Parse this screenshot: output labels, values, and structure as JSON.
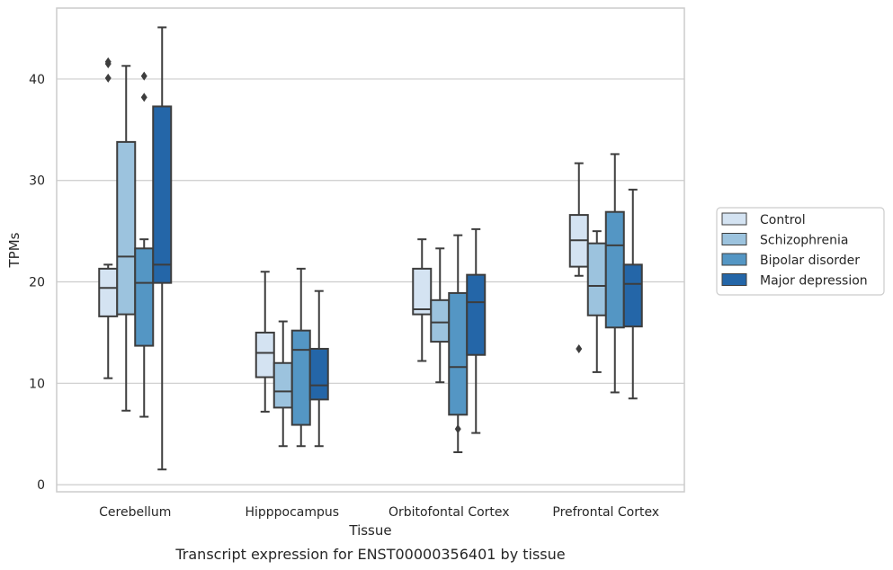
{
  "chart_data": {
    "type": "box",
    "caption": "Transcript expression for ENST00000356401 by tissue",
    "xlabel": "Tissue",
    "ylabel": "TPMs",
    "ylim": [
      -0.7,
      47
    ],
    "yticks": [
      0,
      10,
      20,
      30,
      40
    ],
    "grid": "horizontal",
    "legend": "right",
    "categories": [
      "Cerebellum",
      "Hipppocampus",
      "Orbitofontal Cortex",
      "Prefrontal Cortex"
    ],
    "series": [
      {
        "name": "Control",
        "color": "#d4e3f2",
        "boxes": [
          {
            "whisker_low": 10.5,
            "q1": 16.6,
            "median": 19.4,
            "q3": 21.3,
            "whisker_high": 21.7,
            "outliers": []
          },
          {
            "whisker_low": 7.2,
            "q1": 10.6,
            "median": 13.0,
            "q3": 15.0,
            "whisker_high": 21.0,
            "outliers": []
          },
          {
            "whisker_low": 12.2,
            "q1": 16.8,
            "median": 17.3,
            "q3": 21.3,
            "whisker_high": 24.2,
            "outliers": []
          },
          {
            "whisker_low": 20.6,
            "q1": 21.5,
            "median": 24.1,
            "q3": 26.6,
            "whisker_high": 31.7,
            "outliers": [
              13.4
            ]
          }
        ]
      },
      {
        "name": "Schizophrenia",
        "color": "#9cc3de",
        "boxes": [
          {
            "whisker_low": 7.3,
            "q1": 16.8,
            "median": 22.5,
            "q3": 33.8,
            "whisker_high": 41.3,
            "outliers": []
          },
          {
            "whisker_low": 3.8,
            "q1": 7.6,
            "median": 9.2,
            "q3": 12.0,
            "whisker_high": 16.1,
            "outliers": []
          },
          {
            "whisker_low": 10.1,
            "q1": 14.1,
            "median": 16.0,
            "q3": 18.2,
            "whisker_high": 23.3,
            "outliers": []
          },
          {
            "whisker_low": 11.1,
            "q1": 16.7,
            "median": 19.6,
            "q3": 23.8,
            "whisker_high": 25.0,
            "outliers": []
          }
        ]
      },
      {
        "name": "Bipolar disorder",
        "color": "#5496c4",
        "boxes": [
          {
            "whisker_low": 6.7,
            "q1": 13.7,
            "median": 19.9,
            "q3": 23.3,
            "whisker_high": 24.2,
            "outliers": [
              40.3,
              38.2
            ]
          },
          {
            "whisker_low": 3.8,
            "q1": 5.9,
            "median": 13.3,
            "q3": 15.2,
            "whisker_high": 21.3,
            "outliers": []
          },
          {
            "whisker_low": 3.2,
            "q1": 6.9,
            "median": 11.6,
            "q3": 18.9,
            "whisker_high": 24.6,
            "outliers": [
              5.5
            ]
          },
          {
            "whisker_low": 9.1,
            "q1": 15.5,
            "median": 23.6,
            "q3": 26.9,
            "whisker_high": 32.6,
            "outliers": []
          }
        ]
      },
      {
        "name": "Major depression",
        "color": "#2466a8",
        "boxes": [
          {
            "whisker_low": 1.5,
            "q1": 19.9,
            "median": 21.7,
            "q3": 37.3,
            "whisker_high": 45.1,
            "outliers": []
          },
          {
            "whisker_low": 3.8,
            "q1": 8.4,
            "median": 9.8,
            "q3": 13.4,
            "whisker_high": 19.1,
            "outliers": []
          },
          {
            "whisker_low": 5.1,
            "q1": 12.8,
            "median": 18.0,
            "q3": 20.7,
            "whisker_high": 25.2,
            "outliers": []
          },
          {
            "whisker_low": 8.5,
            "q1": 15.6,
            "median": 19.8,
            "q3": 21.7,
            "whisker_high": 29.1,
            "outliers": []
          }
        ]
      }
    ],
    "cerebellum_control_extra_outliers": [
      41.7,
      41.5,
      40.1
    ]
  }
}
